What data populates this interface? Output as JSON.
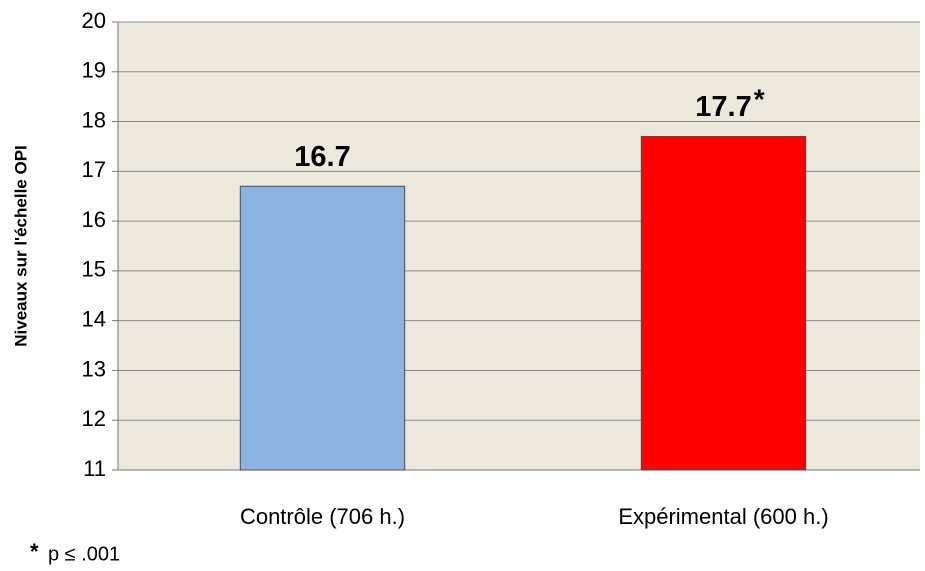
{
  "chart_data": {
    "type": "bar",
    "y_label": "Niveaux sur l'échelle OPI",
    "categories": [
      "Contrôle (706 h.)",
      "Expérimental (600 h.)"
    ],
    "values": [
      16.7,
      17.7
    ],
    "colors": [
      "#8DB3E2",
      "#FF0000"
    ],
    "ylim": [
      11,
      20
    ],
    "yticks": [
      11,
      12,
      13,
      14,
      15,
      16,
      17,
      18,
      19,
      20
    ],
    "grid": true,
    "significance_marker": "*",
    "footnote_marker": "*",
    "footnote": "p ≤ .001"
  }
}
